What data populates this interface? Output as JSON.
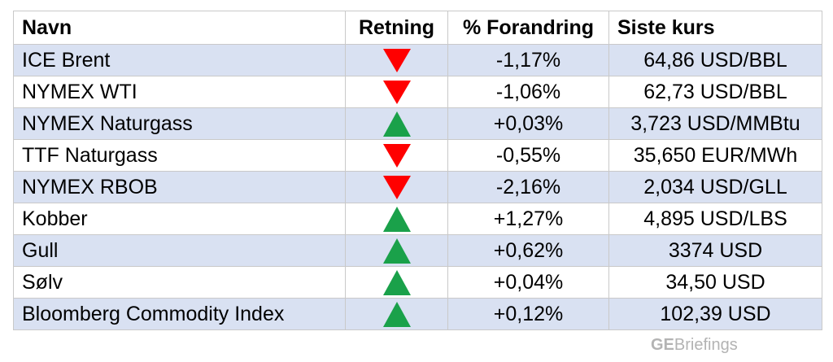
{
  "headers": {
    "name": "Navn",
    "direction": "Retning",
    "change": "% Forandring",
    "last": "Siste kurs"
  },
  "rows": [
    {
      "name": "ICE Brent",
      "direction": "down",
      "change": "-1,17%",
      "last": "64,86 USD/BBL"
    },
    {
      "name": "NYMEX WTI",
      "direction": "down",
      "change": "-1,06%",
      "last": "62,73 USD/BBL"
    },
    {
      "name": "NYMEX Naturgass",
      "direction": "up",
      "change": "+0,03%",
      "last": "3,723 USD/MMBtu"
    },
    {
      "name": "TTF Naturgass",
      "direction": "down",
      "change": "-0,55%",
      "last": "35,650 EUR/MWh"
    },
    {
      "name": "NYMEX RBOB",
      "direction": "down",
      "change": "-2,16%",
      "last": "2,034 USD/GLL"
    },
    {
      "name": "Kobber",
      "direction": "up",
      "change": "+1,27%",
      "last": "4,895 USD/LBS"
    },
    {
      "name": "Gull",
      "direction": "up",
      "change": "+0,62%",
      "last": "3374 USD"
    },
    {
      "name": "Sølv",
      "direction": "up",
      "change": "+0,04%",
      "last": "34,50 USD"
    },
    {
      "name": "Bloomberg Commodity Index",
      "direction": "up",
      "change": "+0,12%",
      "last": "102,39 USD"
    }
  ],
  "colors": {
    "shaded_row": "#d9e1f2",
    "down_arrow": "#ff0000",
    "up_arrow": "#1aa14a"
  },
  "watermark": {
    "bold": "GE",
    "rest": "Briefings"
  }
}
